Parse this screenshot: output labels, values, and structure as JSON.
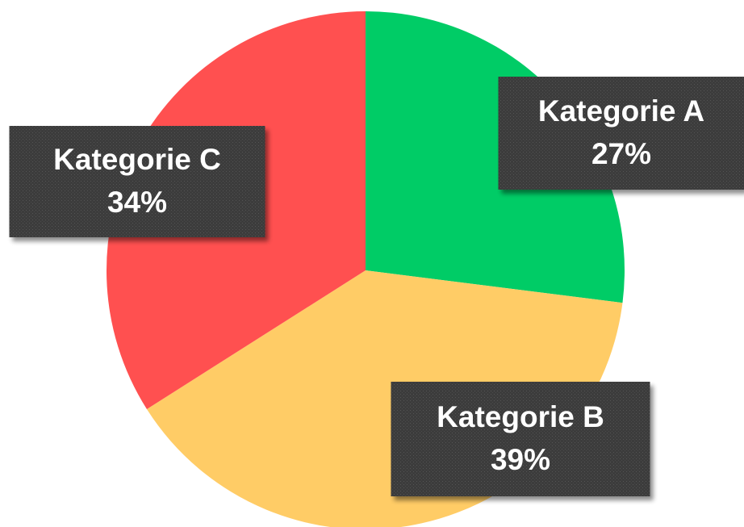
{
  "chart_data": {
    "type": "pie",
    "categories": [
      "Kategorie A",
      "Kategorie B",
      "Kategorie C"
    ],
    "values": [
      27,
      39,
      34
    ],
    "value_labels": [
      "27%",
      "39%",
      "34%"
    ],
    "colors": [
      "#00cc66",
      "#ffcc66",
      "#ff5050"
    ]
  }
}
